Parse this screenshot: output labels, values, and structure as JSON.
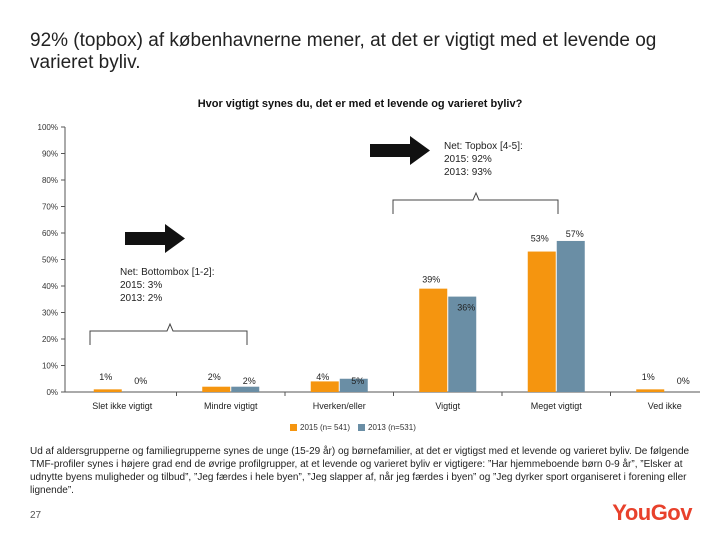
{
  "slide": {
    "headline": "92% (topbox) af københavnerne mener, at det er vigtigt med et levende og varieret byliv.",
    "footer_text": "Ud af aldersgrupperne og familiegrupperne synes de unge (15-29 år) og børnefamilier, at det er vigtigst med et levende og varieret byliv. De følgende TMF-profiler synes i højere grad end de øvrige profilgrupper, at et levende og varieret byliv er vigtigere: ”Har hjemmeboende børn 0-9 år”, ”Elsker at udnytte byens muligheder og tilbud”, ”Jeg færdes i hele byen”, ”Jeg slapper af, når jeg færdes i byen” og ”Jeg dyrker sport organiseret i forening eller lignende”.",
    "page_number": "27",
    "logo": "YouGov"
  },
  "chart_data": {
    "type": "bar",
    "title": "Hvor vigtigt synes du, det er med et levende og varieret byliv?",
    "categories": [
      "Slet ikke vigtigt",
      "Mindre vigtigt",
      "Hverken/eller",
      "Vigtigt",
      "Meget vigtigt",
      "Ved ikke"
    ],
    "series": [
      {
        "name": "2015 (n= 541)",
        "values": [
          1,
          2,
          4,
          39,
          53,
          1
        ],
        "labels": [
          "1%",
          "2%",
          "4%",
          "39%",
          "53%",
          "1%"
        ],
        "color": "#f5950f"
      },
      {
        "name": "2013 (n=531)",
        "values": [
          0,
          2,
          5,
          36,
          57,
          0
        ],
        "labels": [
          "0%",
          "2%",
          "5%",
          "36%",
          "57%",
          "0%"
        ],
        "color": "#6a8ea5"
      }
    ],
    "y_ticks": [
      "0%",
      "10%",
      "20%",
      "30%",
      "40%",
      "50%",
      "60%",
      "70%",
      "80%",
      "90%",
      "100%"
    ],
    "ylim": [
      0,
      100
    ],
    "grid": false,
    "legend_position": "bottom",
    "annotations": {
      "bottombox": "Net: Bottombox [1-2]:\n2015: 3%\n2013: 2%",
      "topbox": "Net: Topbox [4-5]:\n2015: 92%\n2013: 93%"
    }
  }
}
